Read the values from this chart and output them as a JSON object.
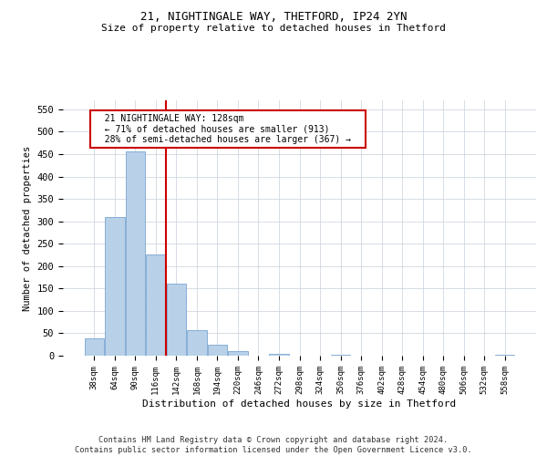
{
  "title1": "21, NIGHTINGALE WAY, THETFORD, IP24 2YN",
  "title2": "Size of property relative to detached houses in Thetford",
  "xlabel": "Distribution of detached houses by size in Thetford",
  "ylabel": "Number of detached properties",
  "categories": [
    "38sqm",
    "64sqm",
    "90sqm",
    "116sqm",
    "142sqm",
    "168sqm",
    "194sqm",
    "220sqm",
    "246sqm",
    "272sqm",
    "298sqm",
    "324sqm",
    "350sqm",
    "376sqm",
    "402sqm",
    "428sqm",
    "454sqm",
    "480sqm",
    "506sqm",
    "532sqm",
    "558sqm"
  ],
  "values": [
    38,
    310,
    455,
    225,
    160,
    58,
    25,
    10,
    0,
    5,
    0,
    0,
    3,
    0,
    0,
    0,
    0,
    0,
    0,
    0,
    3
  ],
  "bar_color": "#b8d0e8",
  "bar_edge_color": "#6699cc",
  "red_line_x": 3.5,
  "annotation_text": "  21 NIGHTINGALE WAY: 128sqm  \n  ← 71% of detached houses are smaller (913)  \n  28% of semi-detached houses are larger (367) →  ",
  "annotation_box_color": "#ffffff",
  "annotation_box_edge_color": "#cc0000",
  "ylim": [
    0,
    570
  ],
  "yticks": [
    0,
    50,
    100,
    150,
    200,
    250,
    300,
    350,
    400,
    450,
    500,
    550
  ],
  "footer": "Contains HM Land Registry data © Crown copyright and database right 2024.\nContains public sector information licensed under the Open Government Licence v3.0.",
  "background_color": "#ffffff",
  "grid_color": "#c8d0dc",
  "title_fontsize": 9,
  "subtitle_fontsize": 8
}
